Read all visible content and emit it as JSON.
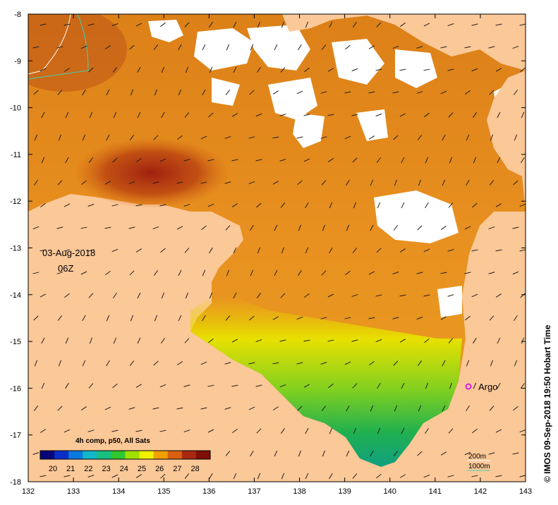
{
  "map": {
    "date_label": "03-Aug-2018",
    "time_label": "06Z",
    "credit": "© IMOS 09-Sep-2018 19:50 Hobart Time",
    "station_label": "Argo",
    "station_color": "#e020e0",
    "colorbar_title": "4h comp, p50, All Sats",
    "colorbar_ticks": [
      "20",
      "21",
      "22",
      "23",
      "24",
      "25",
      "26",
      "27",
      "28"
    ],
    "colorbar_colors": [
      "#05057a",
      "#0a2fc8",
      "#0a7ae0",
      "#10b8c8",
      "#18c080",
      "#30c830",
      "#a0e000",
      "#f0f000",
      "#f0a000",
      "#d86010",
      "#a82810",
      "#801008"
    ],
    "contour_legend": [
      {
        "label": "200m",
        "color": "#ffffff"
      },
      {
        "label": "1000m",
        "color": "#40d0b0"
      }
    ],
    "x_ticks": [
      "132",
      "133",
      "134",
      "135",
      "136",
      "137",
      "138",
      "139",
      "140",
      "141",
      "142",
      "143"
    ],
    "y_ticks": [
      "-8",
      "-9",
      "-10",
      "-11",
      "-12",
      "-13",
      "-14",
      "-15",
      "-16",
      "-17",
      "-18"
    ],
    "colors": {
      "land": "#fbc898",
      "sea_warm": "#e89020",
      "sea_hot": "#b84010",
      "sea_cool": "#20b060",
      "cloud": "#ffffff"
    }
  }
}
